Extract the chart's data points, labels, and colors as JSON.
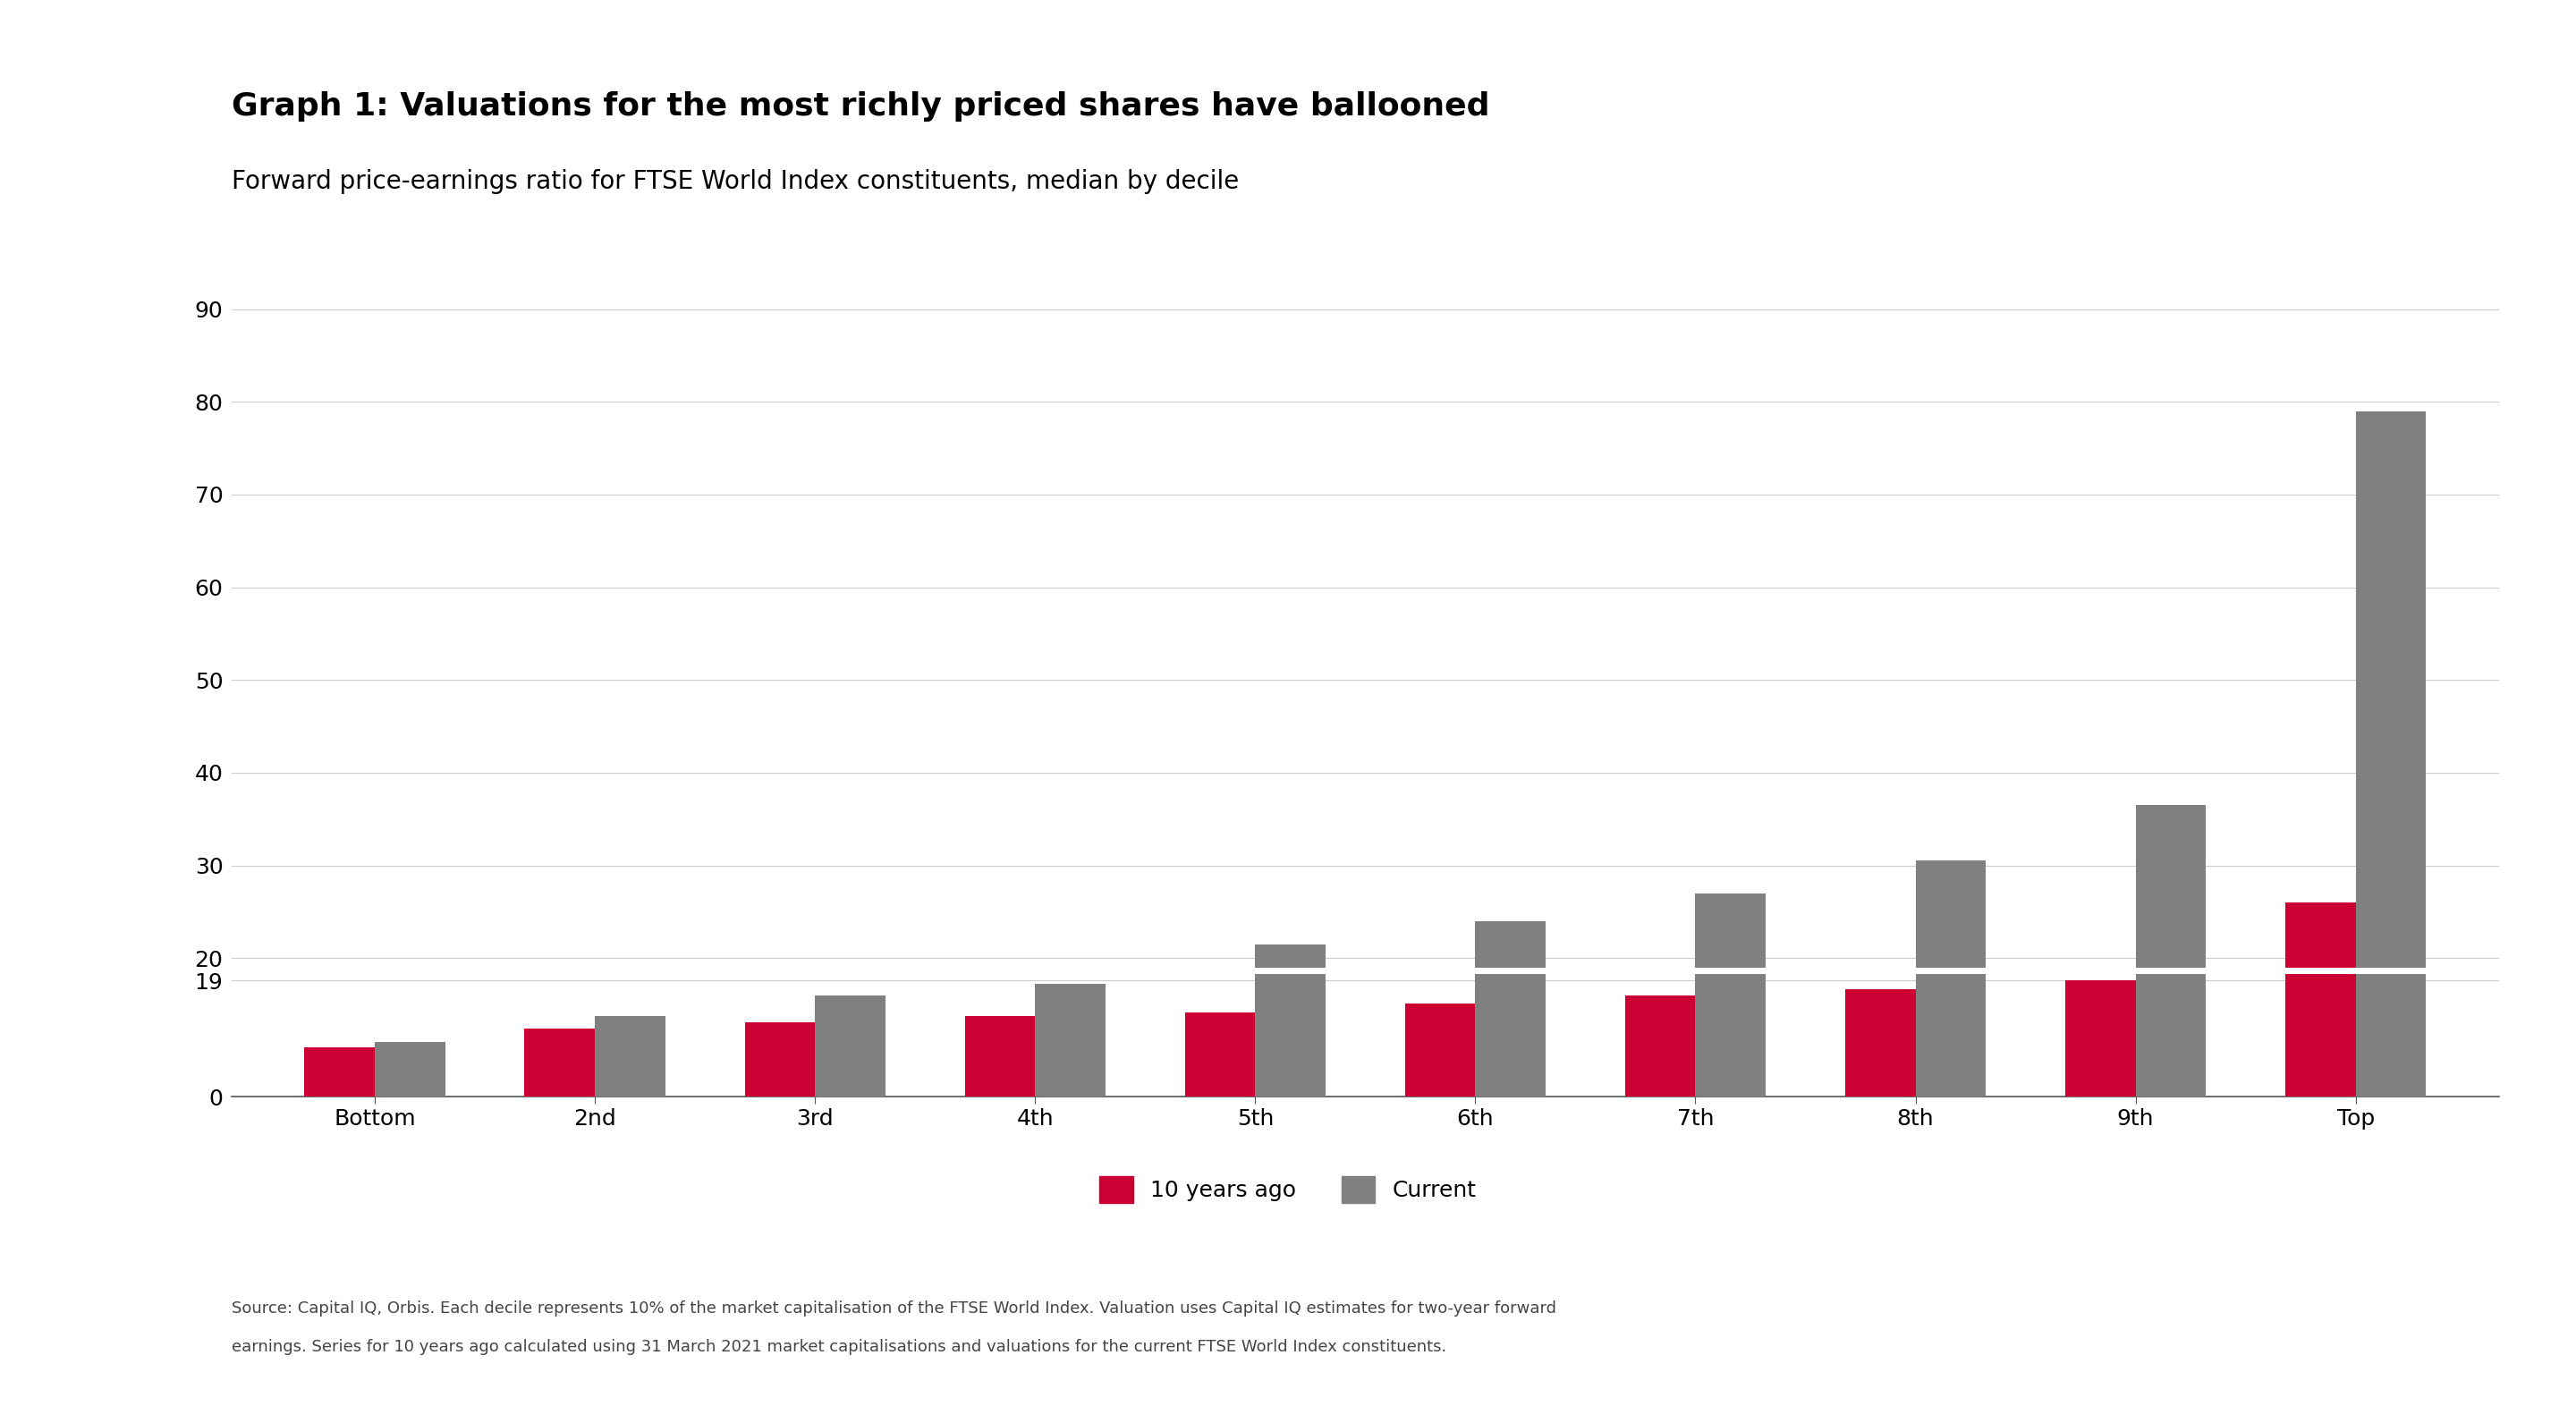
{
  "title": "Graph 1: Valuations for the most richly priced shares have ballooned",
  "subtitle": "Forward price-earnings ratio for FTSE World Index constituents, median by decile",
  "categories": [
    "Bottom",
    "2nd",
    "3rd",
    "4th",
    "5th",
    "6th",
    "7th",
    "8th",
    "9th",
    "Top"
  ],
  "values_10yr": [
    8.0,
    11.2,
    12.2,
    13.2,
    13.7,
    15.2,
    16.5,
    17.5,
    19.0,
    26.0
  ],
  "values_current": [
    9.0,
    13.2,
    16.5,
    18.5,
    21.5,
    24.0,
    27.0,
    30.5,
    36.5,
    79.0
  ],
  "color_10yr": "#CC0033",
  "color_current": "#808080",
  "background_color": "#FFFFFF",
  "legend_label_10yr": "10 years ago",
  "legend_label_current": "Current",
  "yticks_upper": [
    20,
    30,
    40,
    50,
    60,
    70,
    80,
    90
  ],
  "yticks_lower": [
    0,
    19
  ],
  "ylim_upper": [
    19,
    93
  ],
  "ylim_lower": [
    0,
    20
  ],
  "source_line1": "Source: Capital IQ, Orbis. Each decile represents 10% of the market capitalisation of the FTSE World Index. Valuation uses Capital IQ estimates for two-year forward",
  "source_line2": "earnings. Series for 10 years ago calculated using 31 March 2021 market capitalisations and valuations for the current FTSE World Index constituents.",
  "bar_width": 0.32,
  "title_fontsize": 26,
  "subtitle_fontsize": 20,
  "tick_fontsize": 18,
  "legend_fontsize": 18,
  "source_fontsize": 13
}
